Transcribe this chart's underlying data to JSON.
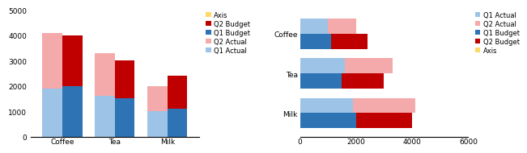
{
  "categories": [
    "Coffee",
    "Tea",
    "Milk"
  ],
  "q1_actual": [
    1900,
    1600,
    1000
  ],
  "q2_actual": [
    2200,
    1700,
    1000
  ],
  "q1_budget": [
    2000,
    1500,
    1100
  ],
  "q2_budget": [
    2000,
    1500,
    1300
  ],
  "colors": {
    "q1_actual": "#9dc3e6",
    "q2_actual": "#f4aaaa",
    "q1_budget": "#2e74b5",
    "q2_budget": "#c00000",
    "axis": "#ffd966"
  },
  "col_ylim": [
    0,
    5000
  ],
  "col_yticks": [
    0,
    1000,
    2000,
    3000,
    4000,
    5000
  ],
  "bar_xlim": [
    0,
    6000
  ],
  "bar_xticks": [
    0,
    2000,
    4000,
    6000
  ],
  "legend_left_labels": [
    "Axis",
    "Q2 Budget",
    "Q1 Budget",
    "Q2 Actual",
    "Q1 Actual"
  ],
  "legend_right_labels": [
    "Q1 Actual",
    "Q2 Actual",
    "Q1 Budget",
    "Q2 Budget",
    "Axis"
  ],
  "bar_categories_order": [
    "Milk",
    "Tea",
    "Coffee"
  ]
}
